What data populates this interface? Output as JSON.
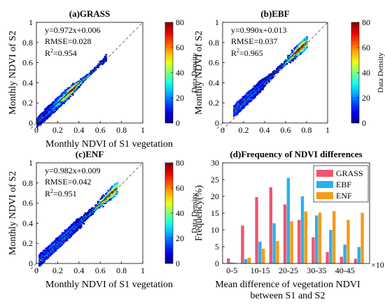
{
  "chart_data": [
    {
      "id": "a",
      "type": "heatmap",
      "title": "(a)GRASS",
      "xlabel": "Monthly NDVI of S1 vegetation",
      "ylabel": "Monthly NDVI of S2",
      "xlim": [
        0,
        1
      ],
      "ylim": [
        0,
        1
      ],
      "xticks": [
        "0",
        "0.2",
        "0.4",
        "0.6",
        "0.8",
        "1"
      ],
      "yticks": [
        "0",
        "0.2",
        "0.4",
        "0.6",
        "0.8",
        "1"
      ],
      "colorbar_label": "Data Density",
      "colorbar_ticks": [
        "0",
        "20",
        "40",
        "60",
        "80"
      ],
      "clim": [
        0,
        80
      ],
      "annotations": [
        "y=0.972x+0.006",
        "RMSE=0.028",
        "R2=0.954"
      ],
      "fit": {
        "slope": 0.972,
        "intercept": 0.006
      },
      "density": {
        "slope": 0.972,
        "intercept": 0.006,
        "xmin": 0.0,
        "xmax": 0.65,
        "peak": 0.34,
        "spread": 0.022,
        "maxd": 80
      }
    },
    {
      "id": "b",
      "type": "heatmap",
      "title": "(b)EBF",
      "xlabel": "",
      "ylabel": "Monthly NDVI of S2",
      "xlim": [
        0,
        1
      ],
      "ylim": [
        0,
        1
      ],
      "xticks": [
        "0",
        "0.2",
        "0.4",
        "0.6",
        "0.8",
        "1"
      ],
      "yticks": [
        "0",
        "0.2",
        "0.4",
        "0.6",
        "0.8",
        "1"
      ],
      "colorbar_label": "Data Density",
      "colorbar_ticks": [
        "0",
        "20",
        "40",
        "60",
        "80"
      ],
      "clim": [
        0,
        80
      ],
      "annotations": [
        "y=0.990x+0.013",
        "RMSE=0.037",
        "R2=0.965"
      ],
      "fit": {
        "slope": 0.99,
        "intercept": 0.013
      },
      "density": {
        "slope": 0.99,
        "intercept": 0.013,
        "xmin": 0.1,
        "xmax": 0.8,
        "peak": 0.72,
        "spread": 0.03,
        "maxd": 80
      }
    },
    {
      "id": "c",
      "type": "heatmap",
      "title": "(c)ENF",
      "xlabel": "Monthly NDVI of S1 vegetation",
      "ylabel": "Monthly NDVI of S2",
      "xlim": [
        0,
        1
      ],
      "ylim": [
        0,
        1
      ],
      "xticks": [
        "0",
        "0.2",
        "0.4",
        "0.6",
        "0.8",
        "1"
      ],
      "yticks": [
        "0",
        "0.2",
        "0.4",
        "0.6",
        "0.8",
        "1"
      ],
      "colorbar_label": "Data Density",
      "colorbar_ticks": [
        "0",
        "20",
        "40",
        "60",
        "80"
      ],
      "clim": [
        0,
        80
      ],
      "annotations": [
        "y=0.982x+0.009",
        "RMSE=0.042",
        "R2=0.951"
      ],
      "fit": {
        "slope": 0.982,
        "intercept": 0.009
      },
      "density": {
        "slope": 0.982,
        "intercept": 0.009,
        "xmin": 0.02,
        "xmax": 0.76,
        "peak": 0.66,
        "spread": 0.035,
        "maxd": 80
      }
    },
    {
      "id": "d",
      "type": "bar",
      "title": "(d)Frequency of NDVI differences",
      "xlabel": "Mean difference of vegetation NDVI between S1 and S2",
      "xlabel_lines": [
        "Mean difference of vegetation NDVI",
        "between S1 and S2"
      ],
      "ylabel": "Frequency(%)",
      "ylim": [
        0,
        30
      ],
      "yticks": [
        "0",
        "5",
        "10",
        "15",
        "20",
        "25",
        "30"
      ],
      "x_multiplier": "×10⁻³",
      "tick_labels": [
        "0-5",
        "10-15",
        "20-25",
        "30-35",
        "40-45"
      ],
      "categories": [
        "0-5",
        "5-10",
        "10-15",
        "15-20",
        "20-25",
        "25-30",
        "30-35",
        "35-40",
        "40-45",
        "45-50"
      ],
      "legend_position": "top-right",
      "series": [
        {
          "name": "GRASS",
          "color": "#f0566e",
          "values": [
            1.5,
            11.3,
            19.8,
            22.7,
            17.6,
            13.0,
            7.8,
            3.4,
            2.0,
            1.4
          ]
        },
        {
          "name": "EBF",
          "color": "#29b0f2",
          "values": [
            0.3,
            1.3,
            6.5,
            12.0,
            25.5,
            20.0,
            14.3,
            10.0,
            5.6,
            4.9
          ]
        },
        {
          "name": "ENF",
          "color": "#f59b17",
          "values": [
            0.2,
            1.7,
            4.4,
            6.7,
            12.6,
            15.5,
            15.2,
            15.6,
            13.0,
            15.1
          ]
        }
      ]
    }
  ]
}
